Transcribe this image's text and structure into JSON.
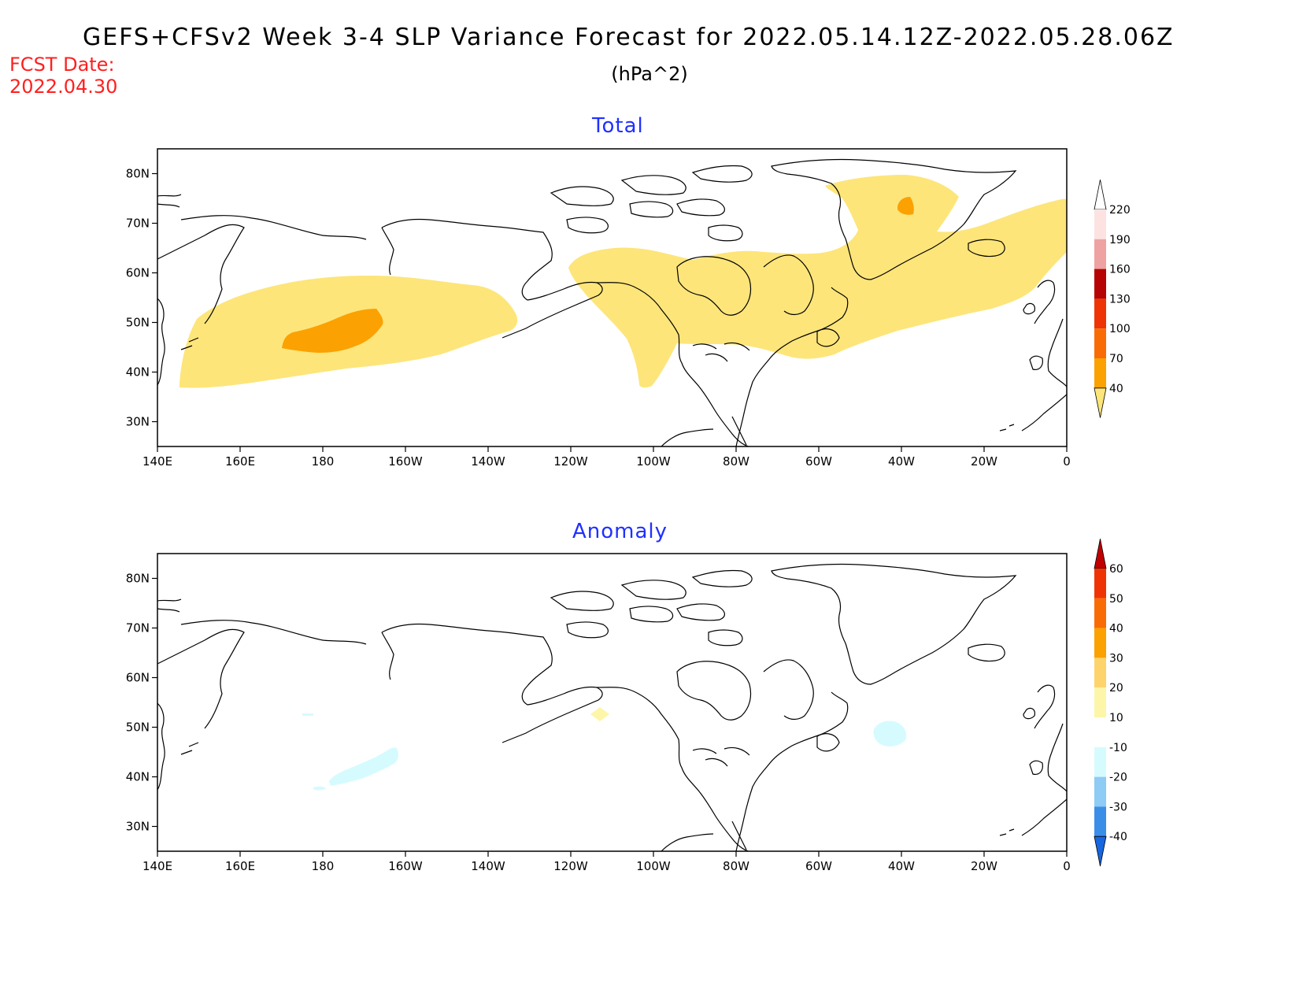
{
  "header": {
    "title": "GEFS+CFSv2 Week 3-4 SLP Variance Forecast for 2022.05.14.12Z-2022.05.28.06Z",
    "units": "(hPa^2)",
    "fcst_label": "FCST Date:",
    "fcst_date": "2022.04.30"
  },
  "panels": [
    {
      "title": "Total",
      "x_ticks": [
        "140E",
        "160E",
        "180",
        "160W",
        "140W",
        "120W",
        "100W",
        "80W",
        "60W",
        "40W",
        "20W",
        "0"
      ],
      "y_ticks": [
        "30N",
        "40N",
        "50N",
        "60N",
        "70N",
        "80N"
      ],
      "colorbar": {
        "levels": [
          "40",
          "70",
          "100",
          "130",
          "160",
          "190",
          "220"
        ],
        "colors": [
          "#fde57a",
          "#fba102",
          "#f96c05",
          "#ee3405",
          "#b60303",
          "#efa2a2",
          "#fde2e2",
          "#ffffff"
        ]
      }
    },
    {
      "title": "Anomaly",
      "x_ticks": [
        "140E",
        "160E",
        "180",
        "160W",
        "140W",
        "120W",
        "100W",
        "80W",
        "60W",
        "40W",
        "20W",
        "0"
      ],
      "y_ticks": [
        "30N",
        "40N",
        "50N",
        "60N",
        "70N",
        "80N"
      ],
      "colorbar": {
        "levels": [
          "-40",
          "-30",
          "-20",
          "-10",
          "10",
          "20",
          "30",
          "40",
          "50",
          "60"
        ],
        "colors": [
          "#1865e0",
          "#3b8ee8",
          "#8ecbf5",
          "#d6fbff",
          "#ffffff",
          "#fdf6a8",
          "#fdd46c",
          "#fba102",
          "#f96c05",
          "#ee3405",
          "#c00000"
        ]
      }
    }
  ]
}
